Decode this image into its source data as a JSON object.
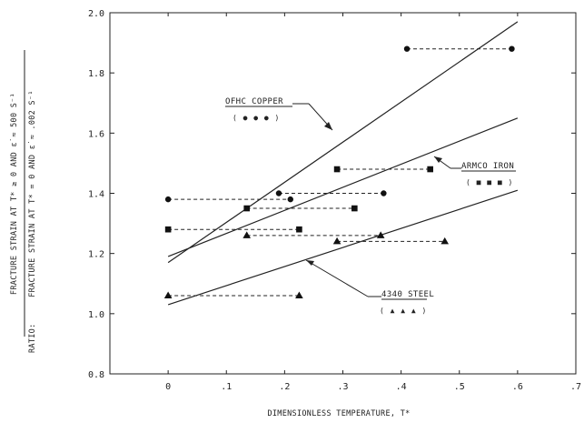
{
  "chart_data": {
    "type": "line",
    "title": "",
    "xlabel": "DIMENSIONLESS TEMPERATURE, T*",
    "ylabel_prefix": "RATIO:",
    "ylabel_numerator": "FRACTURE STRAIN AT T* ≥ 0 AND ε̇ ≈ 500 S⁻¹",
    "ylabel_denominator": "FRACTURE STRAIN AT T* = 0 AND ε̇ ≈ .002 S⁻¹",
    "xlim": [
      -0.1,
      0.7
    ],
    "ylim": [
      0.8,
      2.0
    ],
    "x_ticks": [
      0,
      0.1,
      0.2,
      0.3,
      0.4,
      0.5,
      0.6,
      0.7
    ],
    "x_tick_labels": [
      "0",
      ".1",
      ".2",
      ".3",
      ".4",
      ".5",
      ".6",
      ".7"
    ],
    "y_ticks": [
      0.8,
      1.0,
      1.2,
      1.4,
      1.6,
      1.8,
      2.0
    ],
    "y_tick_labels": [
      "0.8",
      "1.0",
      "1.2",
      "1.4",
      "1.6",
      "1.8",
      "2.0"
    ],
    "grid": false,
    "series": [
      {
        "name": "OFHC COPPER",
        "marker": "circle",
        "marker_label": "( ● ● ● )",
        "fit_line": [
          [
            0.0,
            1.17
          ],
          [
            0.6,
            1.97
          ]
        ],
        "ranges": [
          {
            "x": [
              0.0,
              0.21
            ],
            "y": 1.38
          },
          {
            "x": [
              0.19,
              0.37
            ],
            "y": 1.4
          },
          {
            "x": [
              0.41,
              0.59
            ],
            "y": 1.88
          }
        ]
      },
      {
        "name": "ARMCO IRON",
        "marker": "square",
        "marker_label": "( ■ ■ ■ )",
        "fit_line": [
          [
            0.0,
            1.19
          ],
          [
            0.6,
            1.65
          ]
        ],
        "ranges": [
          {
            "x": [
              0.0,
              0.225
            ],
            "y": 1.28
          },
          {
            "x": [
              0.135,
              0.32
            ],
            "y": 1.35
          },
          {
            "x": [
              0.29,
              0.45
            ],
            "y": 1.48
          }
        ]
      },
      {
        "name": "4340 STEEL",
        "marker": "triangle",
        "marker_label": "( ▲ ▲ ▲ )",
        "fit_line": [
          [
            0.0,
            1.03
          ],
          [
            0.6,
            1.41
          ]
        ],
        "ranges": [
          {
            "x": [
              0.0,
              0.225
            ],
            "y": 1.06
          },
          {
            "x": [
              0.135,
              0.365
            ],
            "y": 1.26
          },
          {
            "x": [
              0.29,
              0.475
            ],
            "y": 1.24
          }
        ]
      }
    ]
  }
}
